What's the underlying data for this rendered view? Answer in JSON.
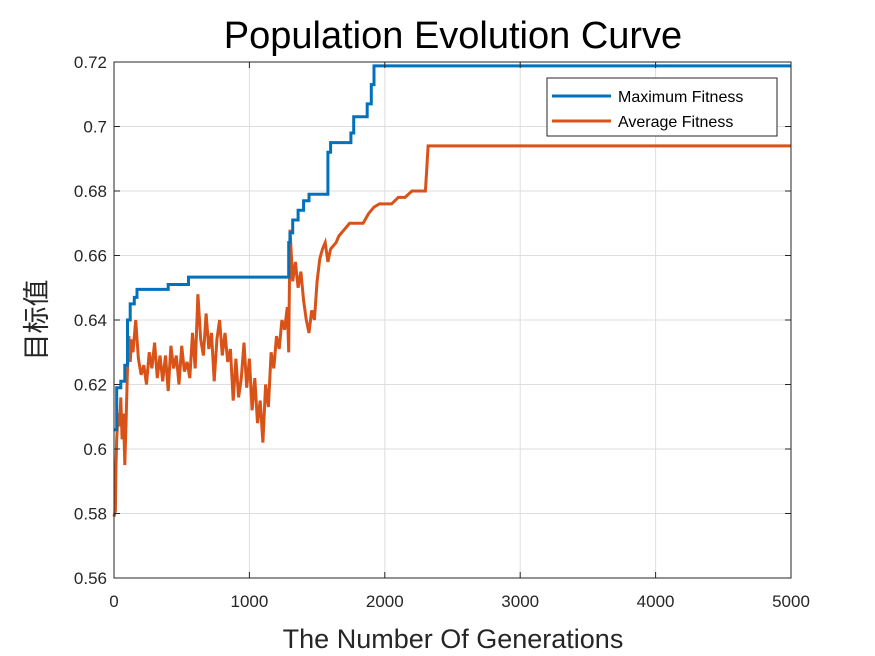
{
  "chart_data": {
    "type": "line",
    "title": "Population Evolution Curve",
    "xlabel": "The Number Of Generations",
    "ylabel": "目标值",
    "xlim": [
      0,
      5000
    ],
    "ylim": [
      0.56,
      0.72
    ],
    "xticks": [
      0,
      1000,
      2000,
      3000,
      4000,
      5000
    ],
    "xtick_labels": [
      "0",
      "1000",
      "2000",
      "3000",
      "4000",
      "5000"
    ],
    "yticks": [
      0.56,
      0.58,
      0.6,
      0.62,
      0.64,
      0.66,
      0.68,
      0.7,
      0.72
    ],
    "ytick_labels": [
      "0.56",
      "0.58",
      "0.6",
      "0.62",
      "0.64",
      "0.66",
      "0.68",
      "0.7",
      "0.72"
    ],
    "grid": true,
    "legend_position": "top-right",
    "series": [
      {
        "name": "Maximum Fitness",
        "color": "#0072BD",
        "x": [
          0,
          20,
          20,
          50,
          50,
          80,
          80,
          100,
          100,
          120,
          120,
          150,
          150,
          170,
          170,
          400,
          400,
          550,
          550,
          1290,
          1290,
          1300,
          1300,
          1320,
          1320,
          1360,
          1360,
          1400,
          1400,
          1440,
          1440,
          1580,
          1580,
          1600,
          1600,
          1750,
          1750,
          1770,
          1770,
          1870,
          1870,
          1900,
          1900,
          1920,
          1920,
          5000
        ],
        "y": [
          0.606,
          0.606,
          0.619,
          0.619,
          0.621,
          0.621,
          0.626,
          0.626,
          0.64,
          0.64,
          0.645,
          0.645,
          0.647,
          0.647,
          0.6495,
          0.6495,
          0.651,
          0.651,
          0.6533,
          0.6533,
          0.664,
          0.664,
          0.667,
          0.667,
          0.671,
          0.671,
          0.674,
          0.674,
          0.677,
          0.677,
          0.679,
          0.679,
          0.692,
          0.692,
          0.695,
          0.695,
          0.698,
          0.698,
          0.703,
          0.703,
          0.707,
          0.707,
          0.713,
          0.713,
          0.7188,
          0.7188
        ]
      },
      {
        "name": "Average Fitness",
        "color": "#D95319",
        "x": [
          0,
          10,
          15,
          20,
          30,
          40,
          50,
          60,
          70,
          80,
          90,
          100,
          110,
          120,
          130,
          140,
          160,
          180,
          200,
          220,
          240,
          260,
          280,
          300,
          320,
          340,
          360,
          380,
          400,
          420,
          440,
          460,
          480,
          500,
          520,
          540,
          560,
          580,
          600,
          620,
          640,
          660,
          680,
          700,
          720,
          740,
          760,
          780,
          800,
          820,
          840,
          860,
          880,
          900,
          920,
          940,
          960,
          980,
          1000,
          1020,
          1040,
          1060,
          1080,
          1100,
          1120,
          1140,
          1160,
          1180,
          1200,
          1220,
          1240,
          1260,
          1280,
          1290,
          1300,
          1320,
          1340,
          1360,
          1380,
          1400,
          1420,
          1440,
          1460,
          1480,
          1500,
          1520,
          1540,
          1560,
          1580,
          1600,
          1620,
          1640,
          1660,
          1680,
          1700,
          1720,
          1740,
          1760,
          1780,
          1800,
          1840,
          1880,
          1920,
          1960,
          2000,
          2050,
          2100,
          2150,
          2200,
          2250,
          2300,
          2310,
          2320,
          2400,
          5000
        ],
        "y": [
          0.579,
          0.581,
          0.595,
          0.603,
          0.611,
          0.607,
          0.616,
          0.603,
          0.611,
          0.595,
          0.61,
          0.625,
          0.635,
          0.627,
          0.634,
          0.63,
          0.64,
          0.628,
          0.623,
          0.626,
          0.62,
          0.63,
          0.625,
          0.633,
          0.622,
          0.629,
          0.621,
          0.629,
          0.618,
          0.632,
          0.625,
          0.629,
          0.62,
          0.632,
          0.624,
          0.627,
          0.622,
          0.636,
          0.625,
          0.648,
          0.634,
          0.629,
          0.642,
          0.631,
          0.636,
          0.621,
          0.634,
          0.64,
          0.629,
          0.636,
          0.627,
          0.631,
          0.615,
          0.628,
          0.616,
          0.622,
          0.633,
          0.619,
          0.628,
          0.612,
          0.622,
          0.608,
          0.615,
          0.602,
          0.62,
          0.613,
          0.63,
          0.625,
          0.635,
          0.631,
          0.64,
          0.637,
          0.644,
          0.63,
          0.668,
          0.652,
          0.658,
          0.65,
          0.655,
          0.646,
          0.64,
          0.636,
          0.643,
          0.64,
          0.652,
          0.659,
          0.662,
          0.664,
          0.658,
          0.662,
          0.663,
          0.664,
          0.666,
          0.667,
          0.668,
          0.669,
          0.67,
          0.67,
          0.67,
          0.67,
          0.67,
          0.673,
          0.675,
          0.676,
          0.676,
          0.676,
          0.678,
          0.678,
          0.68,
          0.68,
          0.68,
          0.687,
          0.694,
          0.694,
          0.694
        ]
      }
    ]
  }
}
